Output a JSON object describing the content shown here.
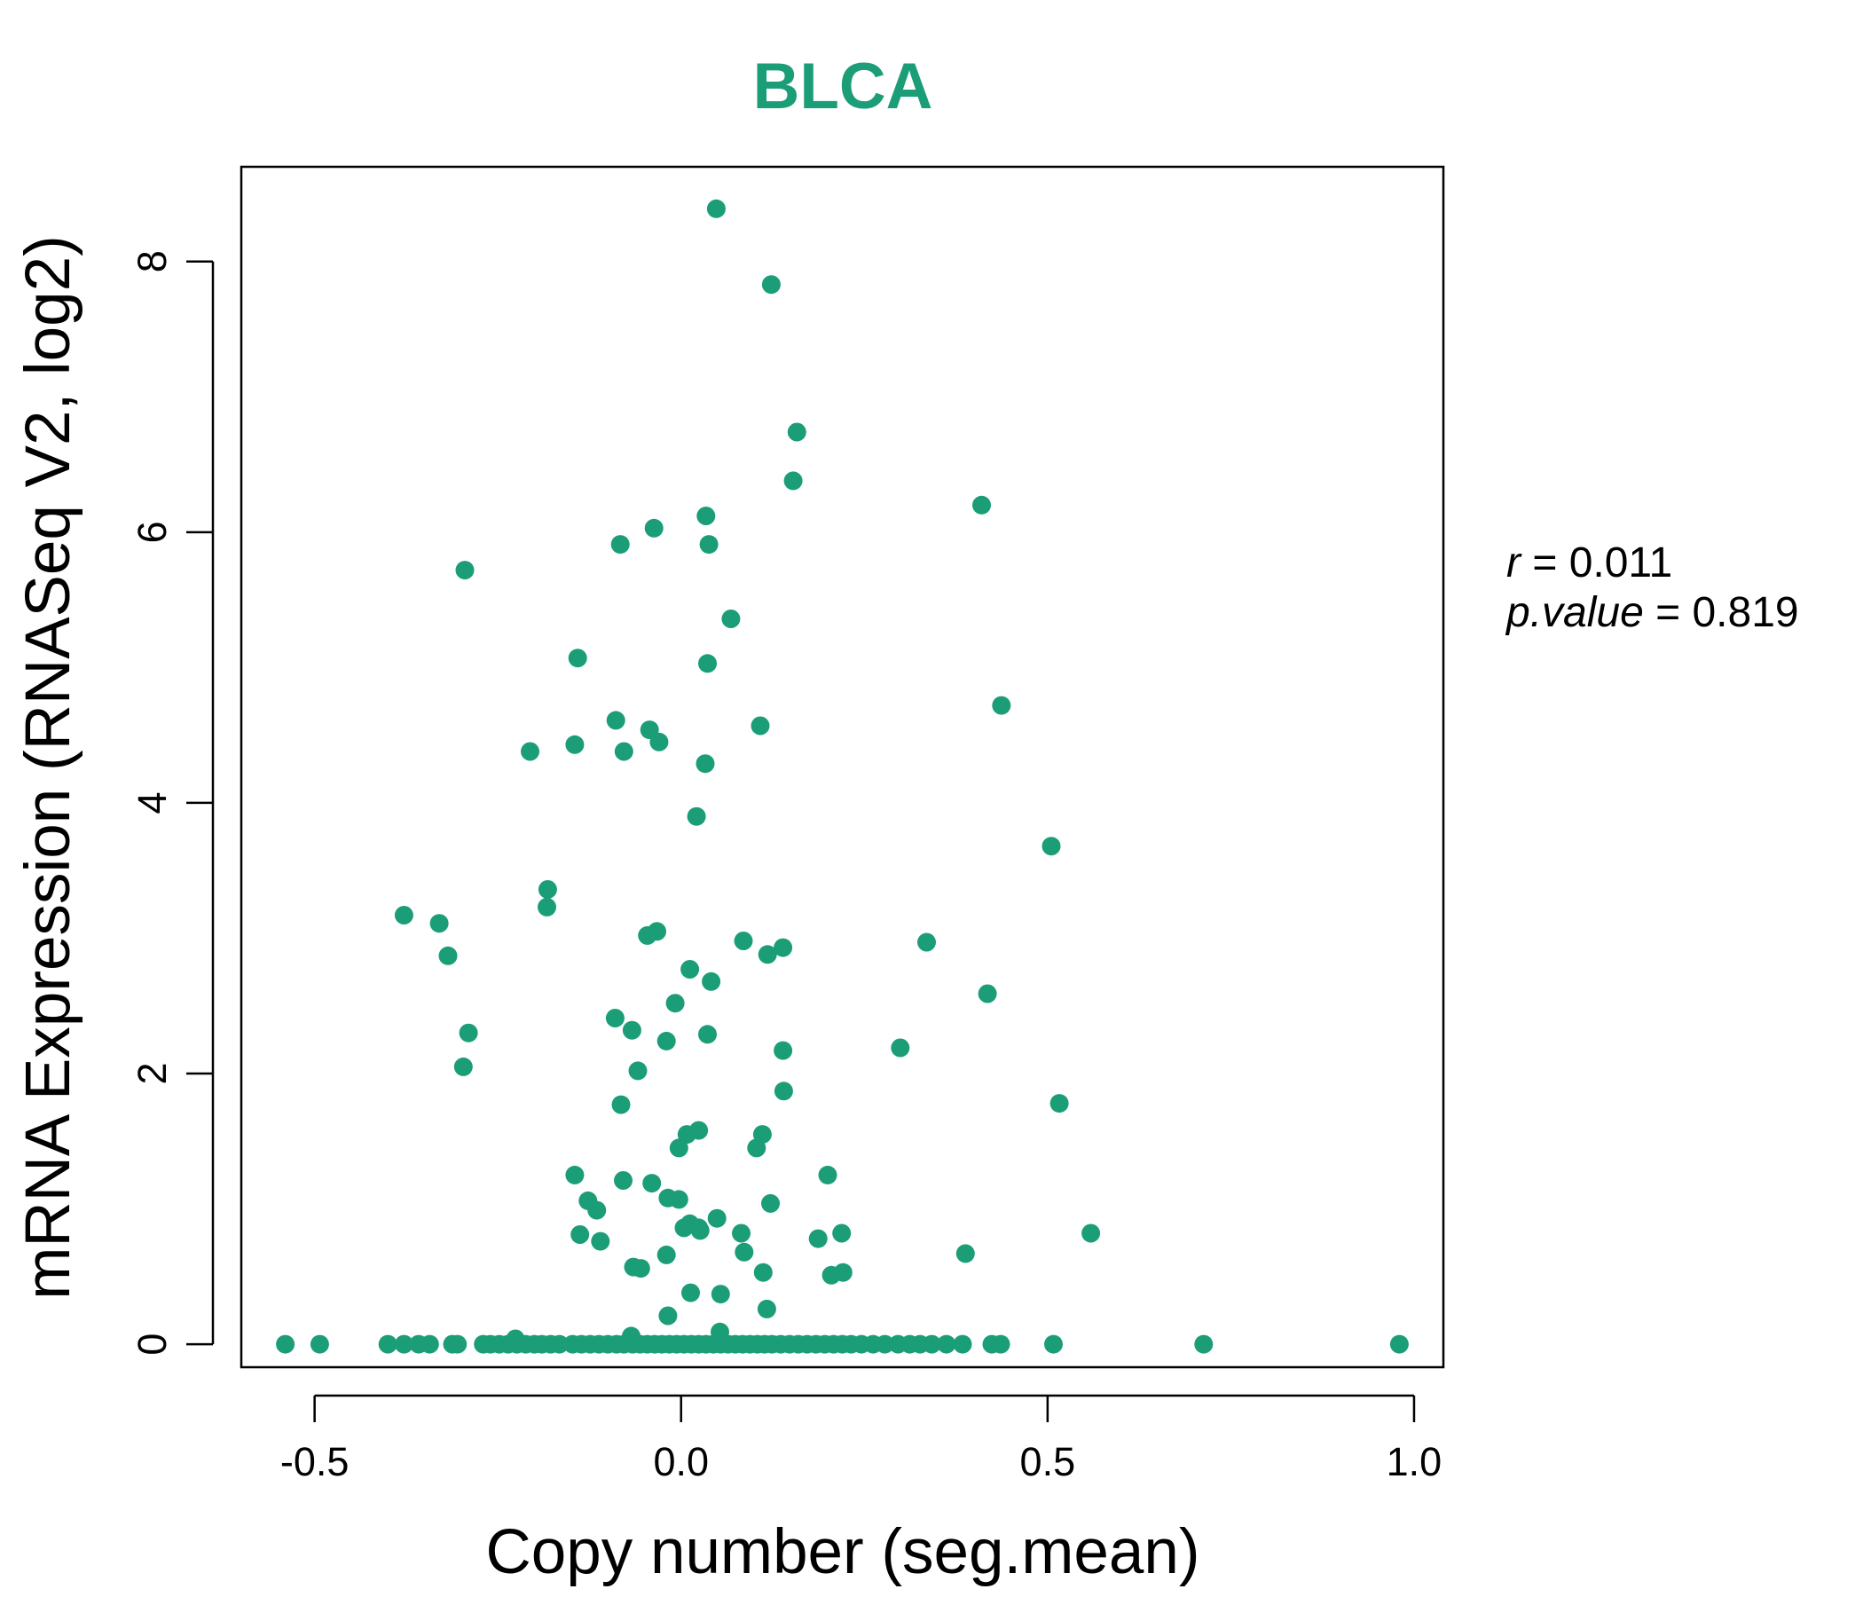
{
  "chart_data": {
    "type": "scatter",
    "title": "BLCA",
    "xlabel": "Copy number (seg.mean)",
    "ylabel": "mRNA Expression (RNASeq V2, log2)",
    "xlim": [
      -0.6,
      1.04
    ],
    "ylim": [
      -0.17,
      8.7
    ],
    "x_ticks": [
      -0.5,
      0.0,
      0.5,
      1.0
    ],
    "x_tick_labels": [
      "-0.5",
      "0.0",
      "0.5",
      "1.0"
    ],
    "y_ticks": [
      0,
      2,
      4,
      6,
      8
    ],
    "y_tick_labels": [
      "0",
      "2",
      "4",
      "6",
      "8"
    ],
    "grid": false,
    "legend": "none",
    "point_color": "#1b9e77",
    "title_color": "#1b9e77",
    "annotation": {
      "r_label": "r",
      "r_value": "0.011",
      "p_label": "p.value",
      "p_value": "0.819"
    },
    "points": [
      [
        0.048,
        8.39
      ],
      [
        0.123,
        7.83
      ],
      [
        0.158,
        6.74
      ],
      [
        0.153,
        6.38
      ],
      [
        0.41,
        6.2
      ],
      [
        0.034,
        6.12
      ],
      [
        -0.037,
        6.03
      ],
      [
        -0.083,
        5.91
      ],
      [
        0.038,
        5.91
      ],
      [
        -0.295,
        5.72
      ],
      [
        0.068,
        5.36
      ],
      [
        -0.141,
        5.07
      ],
      [
        0.036,
        5.03
      ],
      [
        0.437,
        4.72
      ],
      [
        -0.089,
        4.61
      ],
      [
        0.108,
        4.57
      ],
      [
        -0.043,
        4.54
      ],
      [
        -0.03,
        4.45
      ],
      [
        -0.145,
        4.43
      ],
      [
        -0.206,
        4.38
      ],
      [
        -0.078,
        4.38
      ],
      [
        0.033,
        4.29
      ],
      [
        0.021,
        3.9
      ],
      [
        0.505,
        3.68
      ],
      [
        -0.182,
        3.36
      ],
      [
        -0.378,
        3.17
      ],
      [
        -0.183,
        3.23
      ],
      [
        -0.33,
        3.11
      ],
      [
        -0.033,
        3.05
      ],
      [
        -0.046,
        3.02
      ],
      [
        0.085,
        2.98
      ],
      [
        0.335,
        2.97
      ],
      [
        0.139,
        2.93
      ],
      [
        0.118,
        2.88
      ],
      [
        -0.318,
        2.87
      ],
      [
        0.012,
        2.77
      ],
      [
        0.041,
        2.68
      ],
      [
        0.418,
        2.59
      ],
      [
        -0.008,
        2.52
      ],
      [
        -0.09,
        2.41
      ],
      [
        -0.067,
        2.32
      ],
      [
        -0.29,
        2.3
      ],
      [
        0.036,
        2.29
      ],
      [
        -0.02,
        2.24
      ],
      [
        0.299,
        2.19
      ],
      [
        0.139,
        2.17
      ],
      [
        -0.297,
        2.05
      ],
      [
        -0.059,
        2.02
      ],
      [
        0.14,
        1.87
      ],
      [
        0.516,
        1.78
      ],
      [
        -0.082,
        1.77
      ],
      [
        0.024,
        1.58
      ],
      [
        0.008,
        1.55
      ],
      [
        0.111,
        1.55
      ],
      [
        0.103,
        1.45
      ],
      [
        -0.003,
        1.45
      ],
      [
        -0.145,
        1.25
      ],
      [
        0.2,
        1.25
      ],
      [
        -0.079,
        1.21
      ],
      [
        -0.04,
        1.19
      ],
      [
        -0.018,
        1.08
      ],
      [
        -0.003,
        1.07
      ],
      [
        0.122,
        1.04
      ],
      [
        -0.127,
        1.06
      ],
      [
        -0.115,
        0.99
      ],
      [
        0.049,
        0.93
      ],
      [
        0.012,
        0.89
      ],
      [
        0.024,
        0.86
      ],
      [
        0.004,
        0.86
      ],
      [
        0.026,
        0.84
      ],
      [
        0.082,
        0.82
      ],
      [
        0.219,
        0.82
      ],
      [
        0.559,
        0.82
      ],
      [
        -0.138,
        0.81
      ],
      [
        0.187,
        0.78
      ],
      [
        -0.11,
        0.76
      ],
      [
        0.086,
        0.68
      ],
      [
        0.388,
        0.67
      ],
      [
        -0.02,
        0.66
      ],
      [
        -0.065,
        0.57
      ],
      [
        -0.055,
        0.56
      ],
      [
        0.112,
        0.53
      ],
      [
        0.221,
        0.53
      ],
      [
        0.205,
        0.51
      ],
      [
        0.013,
        0.38
      ],
      [
        0.054,
        0.37
      ],
      [
        0.117,
        0.26
      ],
      [
        -0.018,
        0.21
      ],
      [
        0.053,
        0.09
      ],
      [
        -0.068,
        0.06
      ],
      [
        -0.226,
        0.04
      ],
      [
        -0.54,
        0
      ],
      [
        -0.493,
        0
      ],
      [
        -0.4,
        0
      ],
      [
        -0.378,
        0
      ],
      [
        -0.358,
        0
      ],
      [
        -0.343,
        0
      ],
      [
        -0.312,
        0
      ],
      [
        -0.305,
        0
      ],
      [
        -0.27,
        0
      ],
      [
        -0.26,
        0
      ],
      [
        -0.248,
        0
      ],
      [
        -0.236,
        0
      ],
      [
        -0.224,
        0
      ],
      [
        -0.212,
        0
      ],
      [
        -0.2,
        0
      ],
      [
        -0.19,
        0
      ],
      [
        -0.178,
        0
      ],
      [
        -0.166,
        0
      ],
      [
        -0.148,
        0
      ],
      [
        -0.136,
        0
      ],
      [
        -0.124,
        0
      ],
      [
        -0.112,
        0
      ],
      [
        -0.1,
        0
      ],
      [
        -0.088,
        0
      ],
      [
        -0.078,
        0
      ],
      [
        -0.066,
        0
      ],
      [
        -0.056,
        0
      ],
      [
        -0.046,
        0
      ],
      [
        -0.036,
        0
      ],
      [
        -0.026,
        0
      ],
      [
        -0.016,
        0
      ],
      [
        -0.006,
        0
      ],
      [
        0.004,
        0
      ],
      [
        0.014,
        0
      ],
      [
        0.024,
        0
      ],
      [
        0.034,
        0
      ],
      [
        0.044,
        0
      ],
      [
        0.054,
        0
      ],
      [
        0.064,
        0
      ],
      [
        0.074,
        0
      ],
      [
        0.084,
        0
      ],
      [
        0.094,
        0
      ],
      [
        0.104,
        0
      ],
      [
        0.114,
        0
      ],
      [
        0.124,
        0
      ],
      [
        0.136,
        0
      ],
      [
        0.148,
        0
      ],
      [
        0.16,
        0
      ],
      [
        0.172,
        0
      ],
      [
        0.184,
        0
      ],
      [
        0.196,
        0
      ],
      [
        0.208,
        0
      ],
      [
        0.22,
        0
      ],
      [
        0.232,
        0
      ],
      [
        0.246,
        0
      ],
      [
        0.262,
        0
      ],
      [
        0.278,
        0
      ],
      [
        0.296,
        0
      ],
      [
        0.312,
        0
      ],
      [
        0.326,
        0
      ],
      [
        0.342,
        0
      ],
      [
        0.362,
        0
      ],
      [
        0.384,
        0
      ],
      [
        0.424,
        0
      ],
      [
        0.436,
        0
      ],
      [
        0.508,
        0
      ],
      [
        0.713,
        0
      ],
      [
        0.98,
        0
      ]
    ]
  }
}
